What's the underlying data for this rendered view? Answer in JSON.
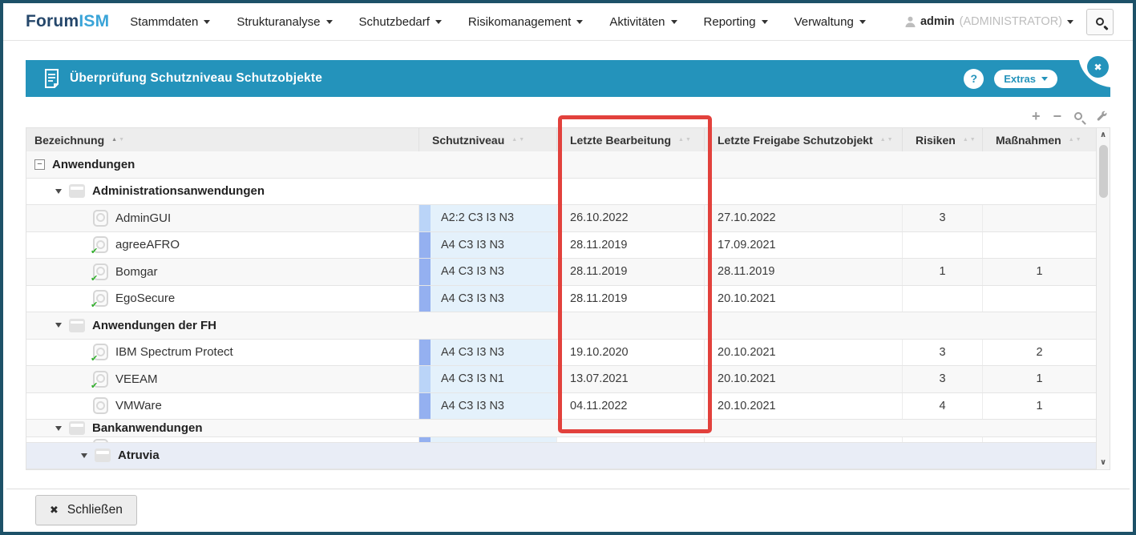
{
  "navbar": {
    "logo_part1": "Forum",
    "logo_part2": "ISM",
    "menus": [
      "Stammdaten",
      "Strukturanalyse",
      "Schutzbedarf",
      "Risikomanagement",
      "Aktivitäten",
      "Reporting",
      "Verwaltung"
    ],
    "user_name": "admin",
    "user_role": "(ADMINISTRATOR)"
  },
  "panel": {
    "title": "Überprüfung Schutzniveau Schutzobjekte",
    "help_label": "?",
    "extras_label": "Extras"
  },
  "toolbar": {
    "icons": [
      "plus-icon",
      "minus-icon",
      "search-icon",
      "wrench-icon"
    ]
  },
  "table": {
    "columns": [
      {
        "label": "Bezeichnung",
        "sorted": "asc"
      },
      {
        "label": "Schutzniveau",
        "sorted": null
      },
      {
        "label": "Letzte Bearbeitung",
        "sorted": null
      },
      {
        "label": "Letzte Freigabe Schutzobjekt",
        "sorted": null
      },
      {
        "label": "Risiken",
        "sorted": null
      },
      {
        "label": "Maßnahmen",
        "sorted": null
      }
    ],
    "rows": [
      {
        "type": "root",
        "level": 0,
        "label": "Anwendungen"
      },
      {
        "type": "group",
        "level": 1,
        "label": "Administrationsanwendungen"
      },
      {
        "type": "leaf",
        "label": "AdminGUI",
        "approved": false,
        "schutzniveau": "A2:2 C3 I3 N3",
        "stripe": "light",
        "letzte_bearbeitung": "26.10.2022",
        "letzte_freigabe": "27.10.2022",
        "risiken": "3",
        "massnahmen": ""
      },
      {
        "type": "leaf",
        "label": "agreeAFRO",
        "approved": true,
        "schutzniveau": "A4 C3 I3 N3",
        "stripe": "dark",
        "letzte_bearbeitung": "28.11.2019",
        "letzte_freigabe": "17.09.2021",
        "risiken": "",
        "massnahmen": ""
      },
      {
        "type": "leaf",
        "label": "Bomgar",
        "approved": true,
        "schutzniveau": "A4 C3 I3 N3",
        "stripe": "dark",
        "letzte_bearbeitung": "28.11.2019",
        "letzte_freigabe": "28.11.2019",
        "risiken": "1",
        "massnahmen": "1"
      },
      {
        "type": "leaf",
        "label": "EgoSecure",
        "approved": true,
        "schutzniveau": "A4 C3 I3 N3",
        "stripe": "dark",
        "letzte_bearbeitung": "28.11.2019",
        "letzte_freigabe": "20.10.2021",
        "risiken": "",
        "massnahmen": ""
      },
      {
        "type": "group",
        "level": 1,
        "label": "Anwendungen der FH"
      },
      {
        "type": "leaf",
        "label": "IBM Spectrum Protect",
        "approved": true,
        "schutzniveau": "A4 C3 I3 N3",
        "stripe": "dark",
        "letzte_bearbeitung": "19.10.2020",
        "letzte_freigabe": "20.10.2021",
        "risiken": "3",
        "massnahmen": "2"
      },
      {
        "type": "leaf",
        "label": "VEEAM",
        "approved": true,
        "schutzniveau": "A4 C3 I3 N1",
        "stripe": "light",
        "letzte_bearbeitung": "13.07.2021",
        "letzte_freigabe": "20.10.2021",
        "risiken": "3",
        "massnahmen": "1"
      },
      {
        "type": "leaf",
        "label": "VMWare",
        "approved": false,
        "schutzniveau": "A4 C3 I3 N3",
        "stripe": "dark",
        "letzte_bearbeitung": "04.11.2022",
        "letzte_freigabe": "20.10.2021",
        "risiken": "4",
        "massnahmen": "1"
      },
      {
        "type": "group",
        "level": 1,
        "label": "Bankanwendungen",
        "clipped": true
      },
      {
        "type": "sliver",
        "stripe": "dark"
      },
      {
        "type": "group",
        "level": 2,
        "label": "Atruvia",
        "selected": true
      }
    ]
  },
  "scrollbar": {
    "up_glyph": "∧",
    "down_glyph": "∨"
  },
  "footer": {
    "close_label": "Schließen"
  },
  "icons": {
    "close_glyph": "✖",
    "check_glyph": "✔",
    "expander_glyph": "−",
    "plus_glyph": "+",
    "minus_glyph": "−"
  },
  "colors": {
    "frame_teal": "#1d5168",
    "accent_teal": "#2493bb",
    "highlight_red": "#e2413c",
    "stripe_dark": "#94b0f0",
    "stripe_light": "#bad4f8",
    "niveau_bg": "#e4f1fb",
    "selected_row": "#e9edf6",
    "logo_navy": "#25476b",
    "logo_blue": "#3aa4d8"
  }
}
